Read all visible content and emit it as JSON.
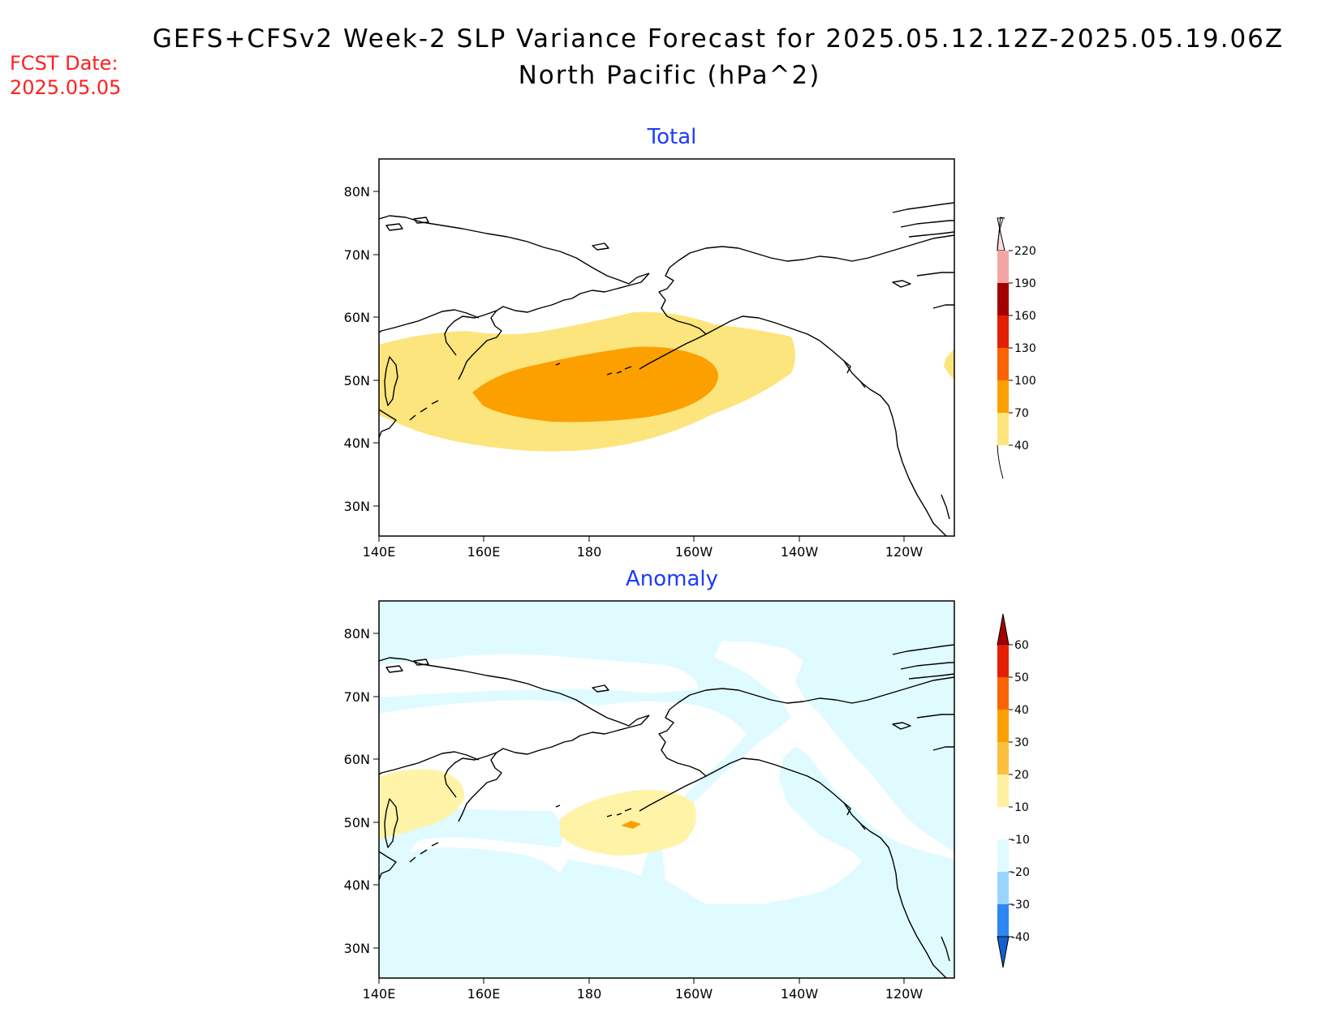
{
  "header": {
    "title_line1": "GEFS+CFSv2 Week-2 SLP Variance Forecast for 2025.05.12.12Z-2025.05.19.06Z",
    "title_line2": "North Pacific (hPa^2)",
    "fcst_label": "FCST Date:",
    "fcst_date": "2025.05.05"
  },
  "axes": {
    "lat_ticks": [
      "80N",
      "70N",
      "60N",
      "50N",
      "40N",
      "30N"
    ],
    "lon_ticks": [
      "140E",
      "160E",
      "180",
      "160W",
      "140W",
      "120W"
    ]
  },
  "panels": [
    {
      "title": "Total",
      "colorbar": {
        "levels": [
          "40",
          "70",
          "100",
          "130",
          "160",
          "190",
          "220"
        ],
        "colors": [
          "#fde57d",
          "#fca000",
          "#fa6400",
          "#e41e00",
          "#a50000",
          "#f3a5a5",
          "#fbdddd"
        ]
      }
    },
    {
      "title": "Anomaly",
      "colorbar": {
        "levels": [
          "60",
          "50",
          "40",
          "30",
          "20",
          "10",
          "-10",
          "-20",
          "-30",
          "-40"
        ],
        "colors": [
          "#a50000",
          "#e41e00",
          "#fa6400",
          "#fca000",
          "#fdbf3e",
          "#fff0a0",
          "#ffffff",
          "#dffbff",
          "#9ad5ff",
          "#2e86f5",
          "#1560d0"
        ]
      }
    }
  ],
  "map_fills": {
    "total_outer_color": "#fde57d",
    "total_inner_color": "#fca000",
    "anomaly_pos_color": "#fff3a8",
    "anomaly_core_color": "#fca000",
    "anomaly_neg_color": "#dffbff"
  }
}
